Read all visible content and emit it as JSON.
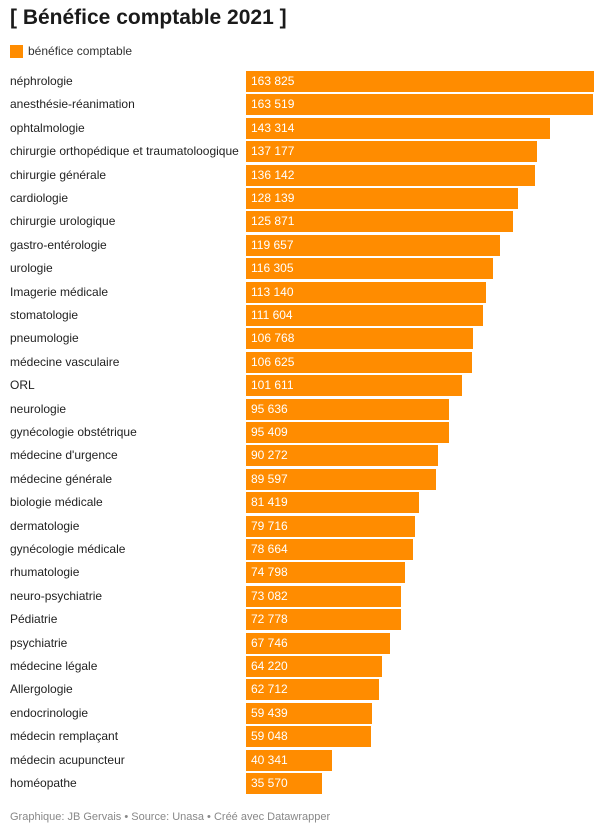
{
  "title": "[ Bénéfice comptable 2021 ]",
  "footer": "Graphique: JB Gervais • Source: Unasa • Créé avec Datawrapper",
  "colors": {
    "bar": "#ff8c00"
  },
  "chart_data": {
    "type": "bar",
    "orientation": "horizontal",
    "title": "[ Bénéfice comptable 2021 ]",
    "legend": [
      "bénéfice comptable"
    ],
    "legend_position": "top-left",
    "xlim": [
      0,
      163825
    ],
    "grid": false,
    "categories": [
      "néphrologie",
      "anesthésie-réanimation",
      "ophtalmologie",
      "chirurgie orthopédique et traumatoloogique",
      "chirurgie générale",
      "cardiologie",
      "chirurgie urologique",
      "gastro-entérologie",
      "urologie",
      "Imagerie médicale",
      "stomatologie",
      "pneumologie",
      "médecine vasculaire",
      "ORL",
      "neurologie",
      "gynécologie obstétrique",
      "médecine d'urgence",
      "médecine générale",
      "biologie médicale",
      "dermatologie",
      "gynécologie médicale",
      "rhumatologie",
      "neuro-psychiatrie",
      "Pédiatrie",
      "psychiatrie",
      "médecine légale",
      "Allergologie",
      "endocrinologie",
      "médecin remplaçant",
      "médecin acupuncteur",
      "homéopathe"
    ],
    "series": [
      {
        "name": "bénéfice comptable",
        "values": [
          163825,
          163519,
          143314,
          137177,
          136142,
          128139,
          125871,
          119657,
          116305,
          113140,
          111604,
          106768,
          106625,
          101611,
          95636,
          95409,
          90272,
          89597,
          81419,
          79716,
          78664,
          74798,
          73082,
          72778,
          67746,
          64220,
          62712,
          59439,
          59048,
          40341,
          35570
        ],
        "labels": [
          "163 825",
          "163 519",
          "143 314",
          "137 177",
          "136 142",
          "128 139",
          "125 871",
          "119 657",
          "116 305",
          "113 140",
          "111 604",
          "106 768",
          "106 625",
          "101 611",
          "95 636",
          "95 409",
          "90 272",
          "89 597",
          "81 419",
          "79 716",
          "78 664",
          "74 798",
          "73 082",
          "72 778",
          "67 746",
          "64 220",
          "62 712",
          "59 439",
          "59 048",
          "40 341",
          "35 570"
        ]
      }
    ]
  }
}
